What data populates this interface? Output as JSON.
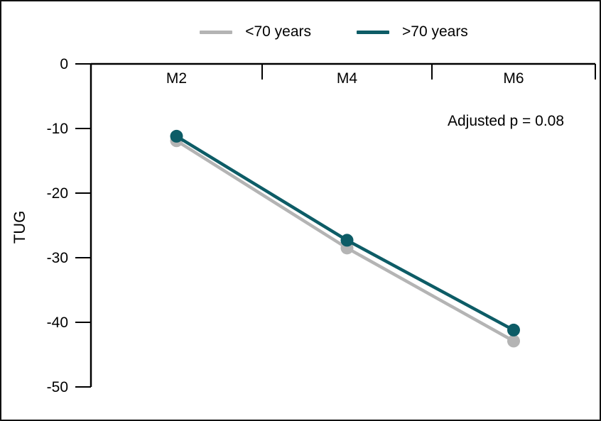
{
  "chart_data": {
    "type": "line",
    "categories": [
      "M2",
      "M4",
      "M6"
    ],
    "series": [
      {
        "name": "<70 years",
        "color": "#b4b4b4",
        "values": [
          -11.9,
          -28.5,
          -42.9
        ]
      },
      {
        "name": ">70 years",
        "color": "#0d5c66",
        "values": [
          -11.2,
          -27.3,
          -41.2
        ]
      }
    ],
    "title": "",
    "xlabel": "",
    "ylabel": "TUG",
    "yticks": [
      0,
      -10,
      -20,
      -30,
      -40,
      -50
    ],
    "ylim": [
      0,
      -50
    ],
    "xlim_categories": [
      "M2",
      "M4",
      "M6"
    ],
    "annotation": "Adjusted p = 0.08",
    "legend_position": "top-center",
    "grid": false,
    "marker": "circle",
    "axis_color": "#000000",
    "x_axis_position": "top"
  }
}
